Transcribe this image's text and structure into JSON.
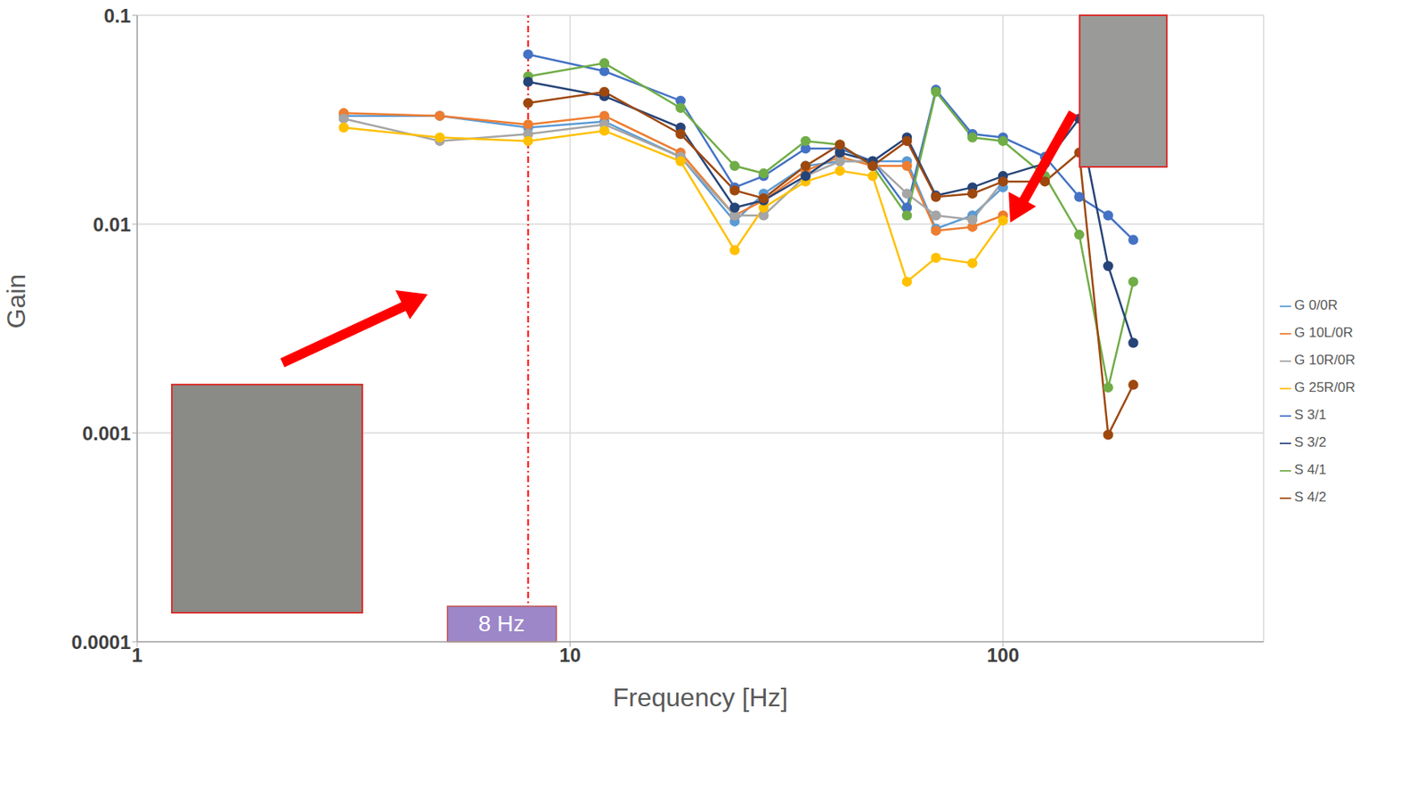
{
  "chart_data": {
    "type": "line",
    "x_label": "Frequency [Hz]",
    "y_label": "Gain",
    "log": true,
    "grid": true,
    "legend": "right",
    "xlim": [
      1,
      400
    ],
    "xticks": [
      1,
      10,
      100
    ],
    "ylim": [
      0.0001,
      0.1
    ],
    "yticks": [
      0.0001,
      0.001,
      0.01,
      0.1
    ],
    "marker": "circle",
    "annotations": [
      {
        "text": "8 Hz",
        "x": 8
      }
    ],
    "x": [
      3,
      5,
      8,
      12,
      18,
      24,
      28,
      35,
      42,
      50,
      60,
      70,
      85,
      100,
      125,
      150,
      175,
      200
    ],
    "series": [
      {
        "name": "G 0/0R",
        "color": "#5b9bd5",
        "values": [
          0.033,
          0.033,
          0.029,
          0.031,
          0.021,
          0.0103,
          0.014,
          0.019,
          0.02,
          0.02,
          0.02,
          0.0095,
          0.011,
          0.015,
          null,
          null,
          null,
          null
        ]
      },
      {
        "name": "G 10L/0R",
        "color": "#ed7d31",
        "values": [
          0.034,
          0.033,
          0.03,
          0.033,
          0.022,
          0.011,
          0.013,
          0.018,
          0.021,
          0.019,
          0.019,
          0.0093,
          0.0097,
          0.011,
          null,
          null,
          null,
          null
        ]
      },
      {
        "name": "G 10R/0R",
        "color": "#a5a5a5",
        "values": [
          0.032,
          0.025,
          0.027,
          0.03,
          0.021,
          0.011,
          0.011,
          0.017,
          0.02,
          0.02,
          0.014,
          0.011,
          0.0105,
          0.016,
          null,
          null,
          null,
          null
        ]
      },
      {
        "name": "G 25R/0R",
        "color": "#ffc000",
        "values": [
          0.029,
          0.026,
          0.025,
          0.028,
          0.02,
          0.0075,
          0.012,
          0.016,
          0.018,
          0.017,
          0.0053,
          0.0069,
          0.0065,
          0.0104,
          null,
          null,
          null,
          null
        ]
      },
      {
        "name": "S 3/1",
        "color": "#4472c4",
        "values": [
          null,
          null,
          0.065,
          0.054,
          0.039,
          0.015,
          0.017,
          0.023,
          0.023,
          0.02,
          0.012,
          0.044,
          0.027,
          0.026,
          0.021,
          0.0135,
          0.011,
          0.0084
        ]
      },
      {
        "name": "S 4/1",
        "color": "#70ad47",
        "values": [
          null,
          null,
          0.051,
          0.059,
          0.036,
          0.019,
          0.0175,
          0.025,
          0.024,
          0.019,
          0.011,
          0.043,
          0.026,
          0.025,
          0.017,
          0.0089,
          0.00165,
          0.0053
        ]
      },
      {
        "name": "S 3/2",
        "color": "#264478",
        "values": [
          null,
          null,
          0.048,
          0.041,
          0.029,
          0.012,
          0.013,
          0.017,
          0.022,
          0.02,
          0.026,
          0.0137,
          0.015,
          0.017,
          0.0195,
          0.032,
          0.0063,
          0.0027
        ]
      },
      {
        "name": "S 4/2",
        "color": "#9e480e",
        "values": [
          null,
          null,
          0.038,
          0.043,
          0.027,
          0.0145,
          0.0133,
          0.019,
          0.024,
          0.019,
          0.025,
          0.0135,
          0.014,
          0.016,
          0.016,
          0.022,
          0.00098,
          0.0017
        ]
      }
    ]
  }
}
